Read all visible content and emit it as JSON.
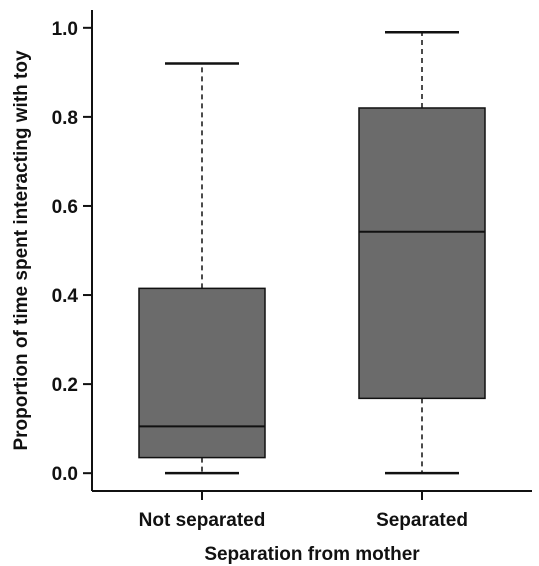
{
  "chart_data": {
    "type": "box",
    "title": "",
    "xlabel": "Separation from mother",
    "ylabel": "Proportion of time spent interacting with toy",
    "ylim": [
      -0.04,
      1.04
    ],
    "yticks": [
      0.0,
      0.2,
      0.4,
      0.6,
      0.8,
      1.0
    ],
    "ytick_labels": [
      "0.0",
      "0.2",
      "0.4",
      "0.6",
      "0.8",
      "1.0"
    ],
    "categories": [
      "Not separated",
      "Separated"
    ],
    "boxes": [
      {
        "category": "Not separated",
        "min": 0.0,
        "q1": 0.035,
        "median": 0.105,
        "q3": 0.415,
        "max": 0.92
      },
      {
        "category": "Separated",
        "min": 0.0,
        "q1": 0.168,
        "median": 0.542,
        "q3": 0.82,
        "max": 0.99
      }
    ],
    "box_fill": "#6b6b6b",
    "line_color": "#111111",
    "grid": false,
    "legend": "none"
  }
}
